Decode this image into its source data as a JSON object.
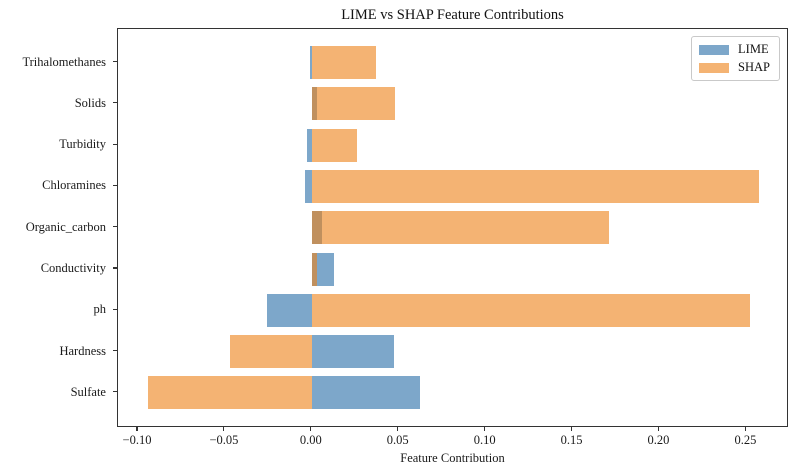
{
  "title": "LIME vs SHAP Feature Contributions",
  "legend": {
    "items": [
      {
        "label": "LIME",
        "color": "rgba(70,130,180,0.7)"
      },
      {
        "label": "SHAP",
        "color": "rgba(237,128,22,0.6)"
      }
    ]
  },
  "chart_data": {
    "type": "bar",
    "orientation": "horizontal",
    "title": "LIME vs SHAP Feature Contributions",
    "xlabel": "Feature Contribution",
    "ylabel": "",
    "categories": [
      "Trihalomethanes",
      "Solids",
      "Turbidity",
      "Chloramines",
      "Organic_carbon",
      "Conductivity",
      "ph",
      "Hardness",
      "Sulfate"
    ],
    "series": [
      {
        "name": "LIME",
        "color": "rgba(70,130,180,0.7)",
        "values": [
          -0.001,
          0.003,
          -0.003,
          -0.004,
          0.006,
          0.013,
          -0.026,
          0.047,
          0.062
        ]
      },
      {
        "name": "SHAP",
        "color": "rgba(237,128,22,0.6)",
        "values": [
          0.037,
          0.048,
          0.026,
          0.257,
          0.171,
          0.003,
          0.252,
          -0.047,
          -0.094
        ]
      }
    ],
    "xlim": [
      -0.1115,
      0.2745
    ],
    "xticks": [
      {
        "value": -0.1,
        "label": "−0.10"
      },
      {
        "value": -0.05,
        "label": "−0.05"
      },
      {
        "value": 0.0,
        "label": "0.00"
      },
      {
        "value": 0.05,
        "label": "0.05"
      },
      {
        "value": 0.1,
        "label": "0.10"
      },
      {
        "value": 0.15,
        "label": "0.15"
      },
      {
        "value": 0.2,
        "label": "0.20"
      },
      {
        "value": 0.25,
        "label": "0.25"
      }
    ],
    "legend_position": "upper right",
    "grid": false,
    "overlap_note": "series bars share the same row band; SHAP drawn semi-transparent over LIME so overlap renders tan-brown"
  }
}
